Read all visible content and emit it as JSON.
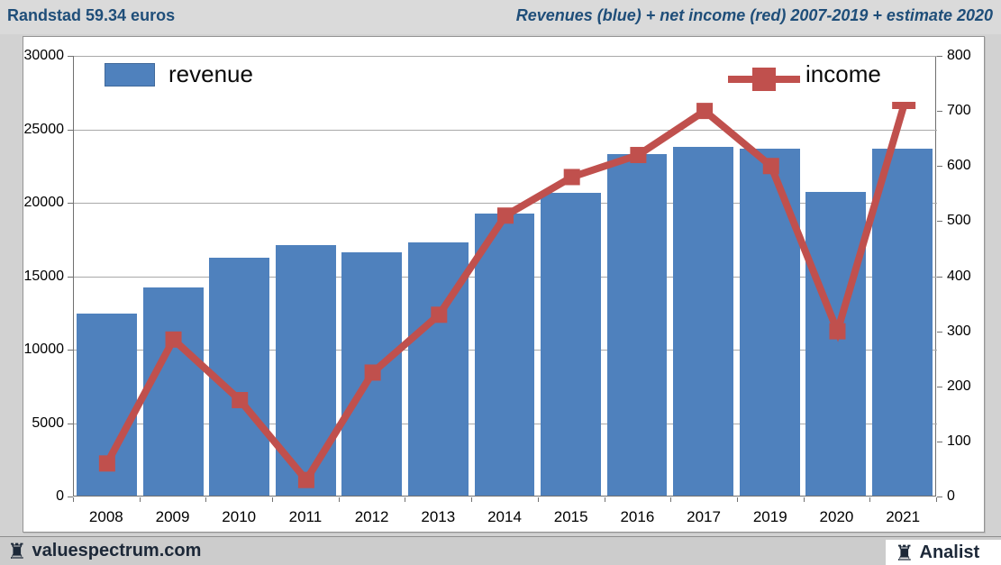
{
  "header": {
    "left_title": "Randstad 59.34 euros",
    "right_title": "Revenues (blue) + net income (red) 2007-2019 + estimate 2020"
  },
  "legend": {
    "revenue_label": "revenue",
    "income_label": "income"
  },
  "footer": {
    "left_brand": "valuespectrum.com",
    "right_brand": "Analist",
    "rook_icon": "♜"
  },
  "colors": {
    "bar_blue": "#4f81bd",
    "line_red": "#c0504d",
    "header_blue": "#1f4e79",
    "gridline_gray": "#a9a9a9",
    "axis_gray": "#707070",
    "footer_text": "#1c2838"
  },
  "chart_data": {
    "type": "bar",
    "title": "Revenues (blue) + net income (red) 2007-2019 + estimate 2020",
    "subtitle": "Randstad 59.34 euros",
    "categories": [
      "2008",
      "2009",
      "2010",
      "2011",
      "2012",
      "2013",
      "2014",
      "2015",
      "2016",
      "2017",
      "2019",
      "2020",
      "2021"
    ],
    "series": [
      {
        "name": "revenue",
        "kind": "bar",
        "axis": "left",
        "color": "#4f81bd",
        "values": [
          12400,
          14180,
          16225,
          17090,
          16570,
          17250,
          19220,
          20680,
          23270,
          23810,
          23680,
          20720,
          23680
        ]
      },
      {
        "name": "income",
        "kind": "line",
        "axis": "right",
        "color": "#c0504d",
        "marker": "square",
        "values": [
          60,
          285,
          175,
          30,
          225,
          330,
          510,
          580,
          620,
          700,
          600,
          300,
          710
        ]
      }
    ],
    "left_axis": {
      "min": 0,
      "max": 30000,
      "tick_step": 5000,
      "tick_labels": [
        "0",
        "5000",
        "10000",
        "15000",
        "20000",
        "25000",
        "30000"
      ]
    },
    "right_axis": {
      "min": 0,
      "max": 800,
      "tick_step": 100,
      "tick_labels": [
        "0",
        "100",
        "200",
        "300",
        "400",
        "500",
        "600",
        "700",
        "800"
      ]
    },
    "grid": true,
    "legend_position": "top-inside"
  }
}
